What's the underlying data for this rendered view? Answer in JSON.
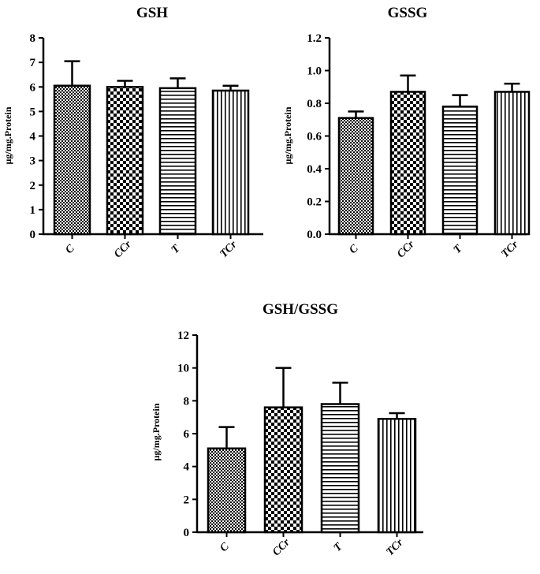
{
  "chart_data": [
    {
      "type": "bar",
      "title": "GSH",
      "ylabel": "µg/mg.Protein",
      "categories": [
        "C",
        "CCr",
        "T",
        "TCr"
      ],
      "values": [
        6.05,
        6.0,
        5.95,
        5.85
      ],
      "error": [
        1.0,
        0.25,
        0.4,
        0.2
      ],
      "ylim": [
        0,
        8
      ],
      "yticks": [
        "0",
        "1",
        "2",
        "3",
        "4",
        "5",
        "6",
        "7",
        "8"
      ],
      "grid": false,
      "patterns": [
        "fine-checker",
        "checker",
        "horizontal-lines",
        "vertical-lines"
      ]
    },
    {
      "type": "bar",
      "title": "GSSG",
      "ylabel": "µg/mg.Protein",
      "categories": [
        "C",
        "CCr",
        "T",
        "TCr"
      ],
      "values": [
        0.71,
        0.87,
        0.78,
        0.87
      ],
      "error": [
        0.04,
        0.1,
        0.07,
        0.05
      ],
      "ylim": [
        0,
        1.2
      ],
      "yticks": [
        "0.0",
        "0.2",
        "0.4",
        "0.6",
        "0.8",
        "1.0",
        "1.2"
      ],
      "grid": false,
      "patterns": [
        "fine-checker",
        "checker",
        "horizontal-lines",
        "vertical-lines"
      ]
    },
    {
      "type": "bar",
      "title": "GSH/GSSG",
      "ylabel": "µg/mg.Protein",
      "categories": [
        "C",
        "CCr",
        "T",
        "TCr"
      ],
      "values": [
        5.1,
        7.6,
        7.8,
        6.9
      ],
      "error": [
        1.3,
        2.4,
        1.3,
        0.35
      ],
      "ylim": [
        0,
        12
      ],
      "yticks": [
        "0",
        "2",
        "4",
        "6",
        "8",
        "10",
        "12"
      ],
      "grid": false,
      "patterns": [
        "fine-checker",
        "checker",
        "horizontal-lines",
        "vertical-lines"
      ]
    }
  ]
}
